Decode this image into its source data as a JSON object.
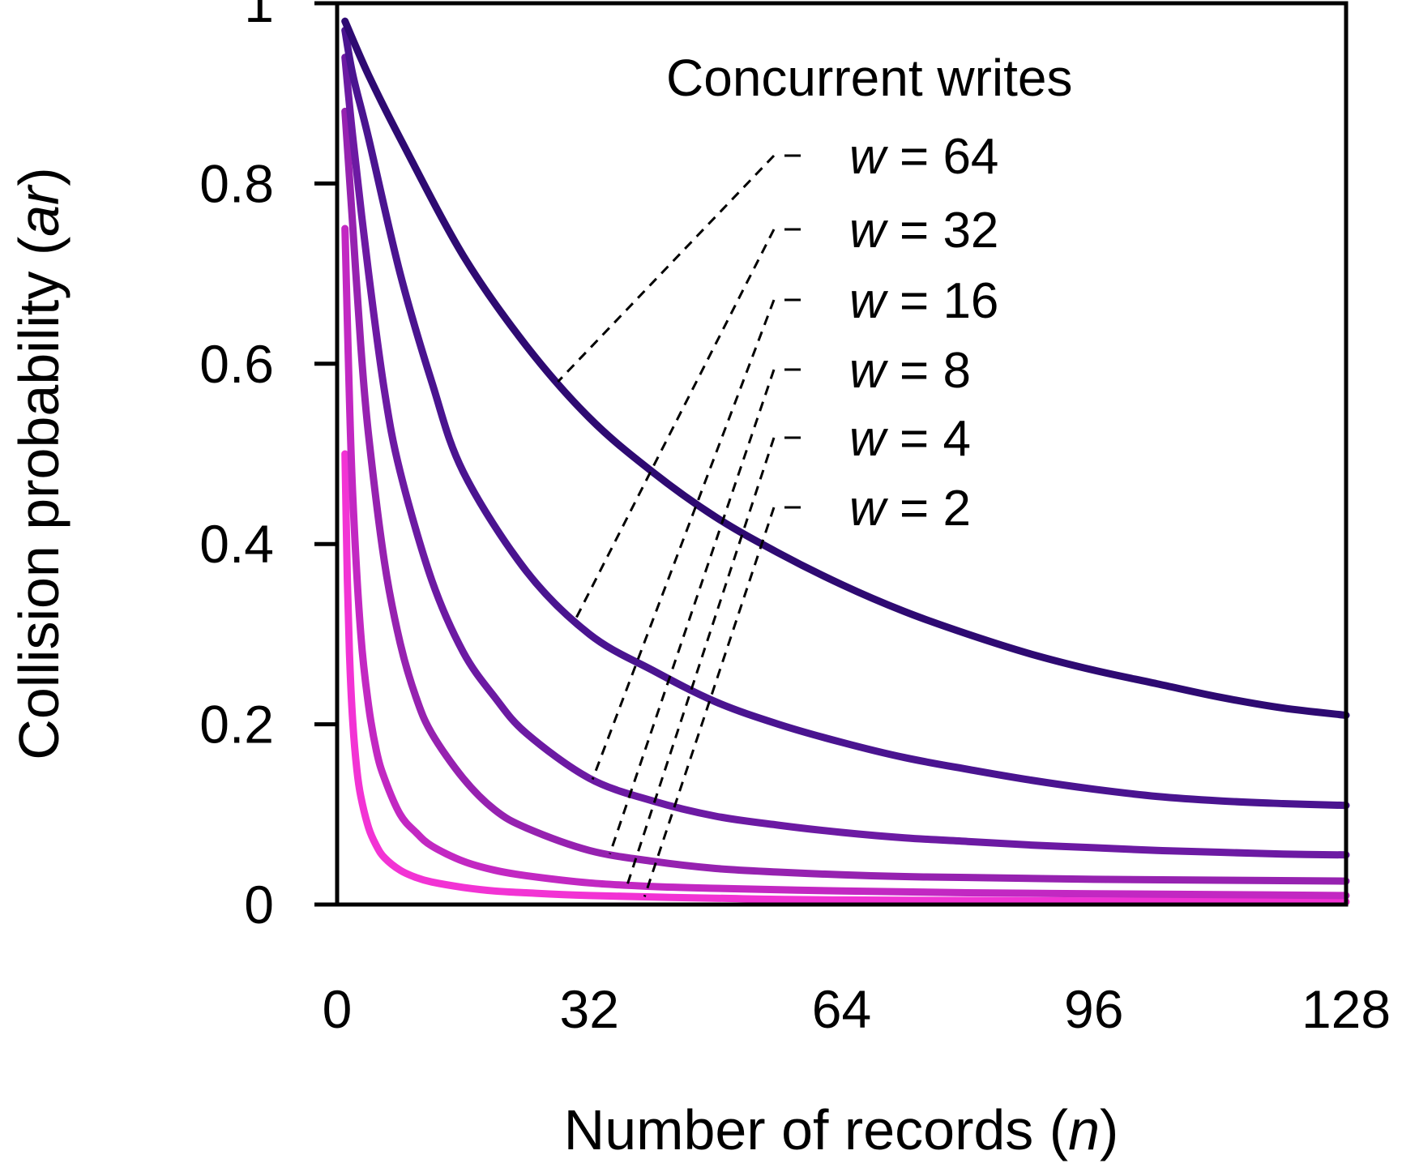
{
  "chart_data": {
    "type": "line",
    "title": "",
    "xlabel": "Number of records (n)",
    "xlabel_parts": [
      "Number of records (",
      "n",
      ")"
    ],
    "ylabel": "Collision probability (ar)",
    "ylabel_parts": [
      "Collision probability (",
      "ar",
      ")"
    ],
    "xlim": [
      0,
      128
    ],
    "ylim": [
      0,
      1
    ],
    "xticks": [
      0,
      32,
      64,
      96,
      128
    ],
    "yticks": [
      0,
      0.2,
      0.4,
      0.6,
      0.8,
      1
    ],
    "ytick_labels": [
      "0",
      "0.2",
      "0.4",
      "0.6",
      "0.8",
      "1"
    ],
    "grid": false,
    "legend_title": "Concurrent writes",
    "legend_placement": "top-right",
    "series": [
      {
        "name": "w = 64",
        "w": 64,
        "color": "#2e0a72",
        "x": [
          1,
          4,
          8,
          16,
          24,
          32,
          40,
          48,
          56,
          64,
          72,
          80,
          88,
          96,
          104,
          112,
          120,
          128
        ],
        "y": [
          0.98,
          0.92,
          0.85,
          0.72,
          0.62,
          0.54,
          0.48,
          0.43,
          0.39,
          0.355,
          0.325,
          0.3,
          0.278,
          0.26,
          0.245,
          0.23,
          0.218,
          0.21
        ]
      },
      {
        "name": "w = 32",
        "w": 32,
        "color": "#4a1490",
        "x": [
          1,
          2,
          4,
          8,
          12,
          16,
          24,
          32,
          40,
          48,
          56,
          64,
          72,
          80,
          88,
          96,
          104,
          112,
          120,
          128
        ],
        "y": [
          0.97,
          0.92,
          0.85,
          0.7,
          0.58,
          0.48,
          0.37,
          0.3,
          0.26,
          0.225,
          0.2,
          0.18,
          0.163,
          0.15,
          0.138,
          0.128,
          0.12,
          0.115,
          0.112,
          0.11
        ]
      },
      {
        "name": "w = 16",
        "w": 16,
        "color": "#6c1aa3",
        "x": [
          1,
          2,
          4,
          6,
          8,
          12,
          16,
          20,
          24,
          32,
          40,
          48,
          56,
          64,
          72,
          80,
          88,
          96,
          104,
          112,
          120,
          128
        ],
        "y": [
          0.94,
          0.85,
          0.7,
          0.57,
          0.48,
          0.36,
          0.28,
          0.23,
          0.19,
          0.14,
          0.115,
          0.098,
          0.088,
          0.08,
          0.074,
          0.07,
          0.066,
          0.063,
          0.06,
          0.058,
          0.056,
          0.055
        ]
      },
      {
        "name": "w = 8",
        "w": 8,
        "color": "#9622b0",
        "x": [
          1,
          2,
          3,
          4,
          6,
          8,
          10,
          12,
          16,
          20,
          24,
          32,
          40,
          48,
          56,
          64,
          72,
          80,
          96,
          112,
          128
        ],
        "y": [
          0.88,
          0.75,
          0.62,
          0.52,
          0.38,
          0.29,
          0.23,
          0.19,
          0.14,
          0.105,
          0.085,
          0.06,
          0.048,
          0.04,
          0.036,
          0.033,
          0.031,
          0.03,
          0.028,
          0.027,
          0.026
        ]
      },
      {
        "name": "w = 4",
        "w": 4,
        "color": "#c228c2",
        "x": [
          1,
          1.5,
          2,
          3,
          4,
          5,
          6,
          8,
          10,
          12,
          16,
          20,
          24,
          32,
          40,
          48,
          64,
          80,
          96,
          112,
          128
        ],
        "y": [
          0.75,
          0.58,
          0.45,
          0.3,
          0.22,
          0.17,
          0.14,
          0.1,
          0.08,
          0.065,
          0.048,
          0.038,
          0.032,
          0.024,
          0.02,
          0.018,
          0.015,
          0.013,
          0.012,
          0.011,
          0.01
        ]
      },
      {
        "name": "w = 2",
        "w": 2,
        "color": "#f233d4",
        "x": [
          1,
          1.3,
          1.6,
          2,
          2.5,
          3,
          4,
          5,
          6,
          8,
          10,
          12,
          16,
          20,
          24,
          32,
          48,
          64,
          96,
          128
        ],
        "y": [
          0.5,
          0.36,
          0.27,
          0.2,
          0.15,
          0.12,
          0.085,
          0.065,
          0.052,
          0.038,
          0.03,
          0.025,
          0.019,
          0.015,
          0.013,
          0.01,
          0.007,
          0.005,
          0.004,
          0.003
        ]
      }
    ]
  }
}
